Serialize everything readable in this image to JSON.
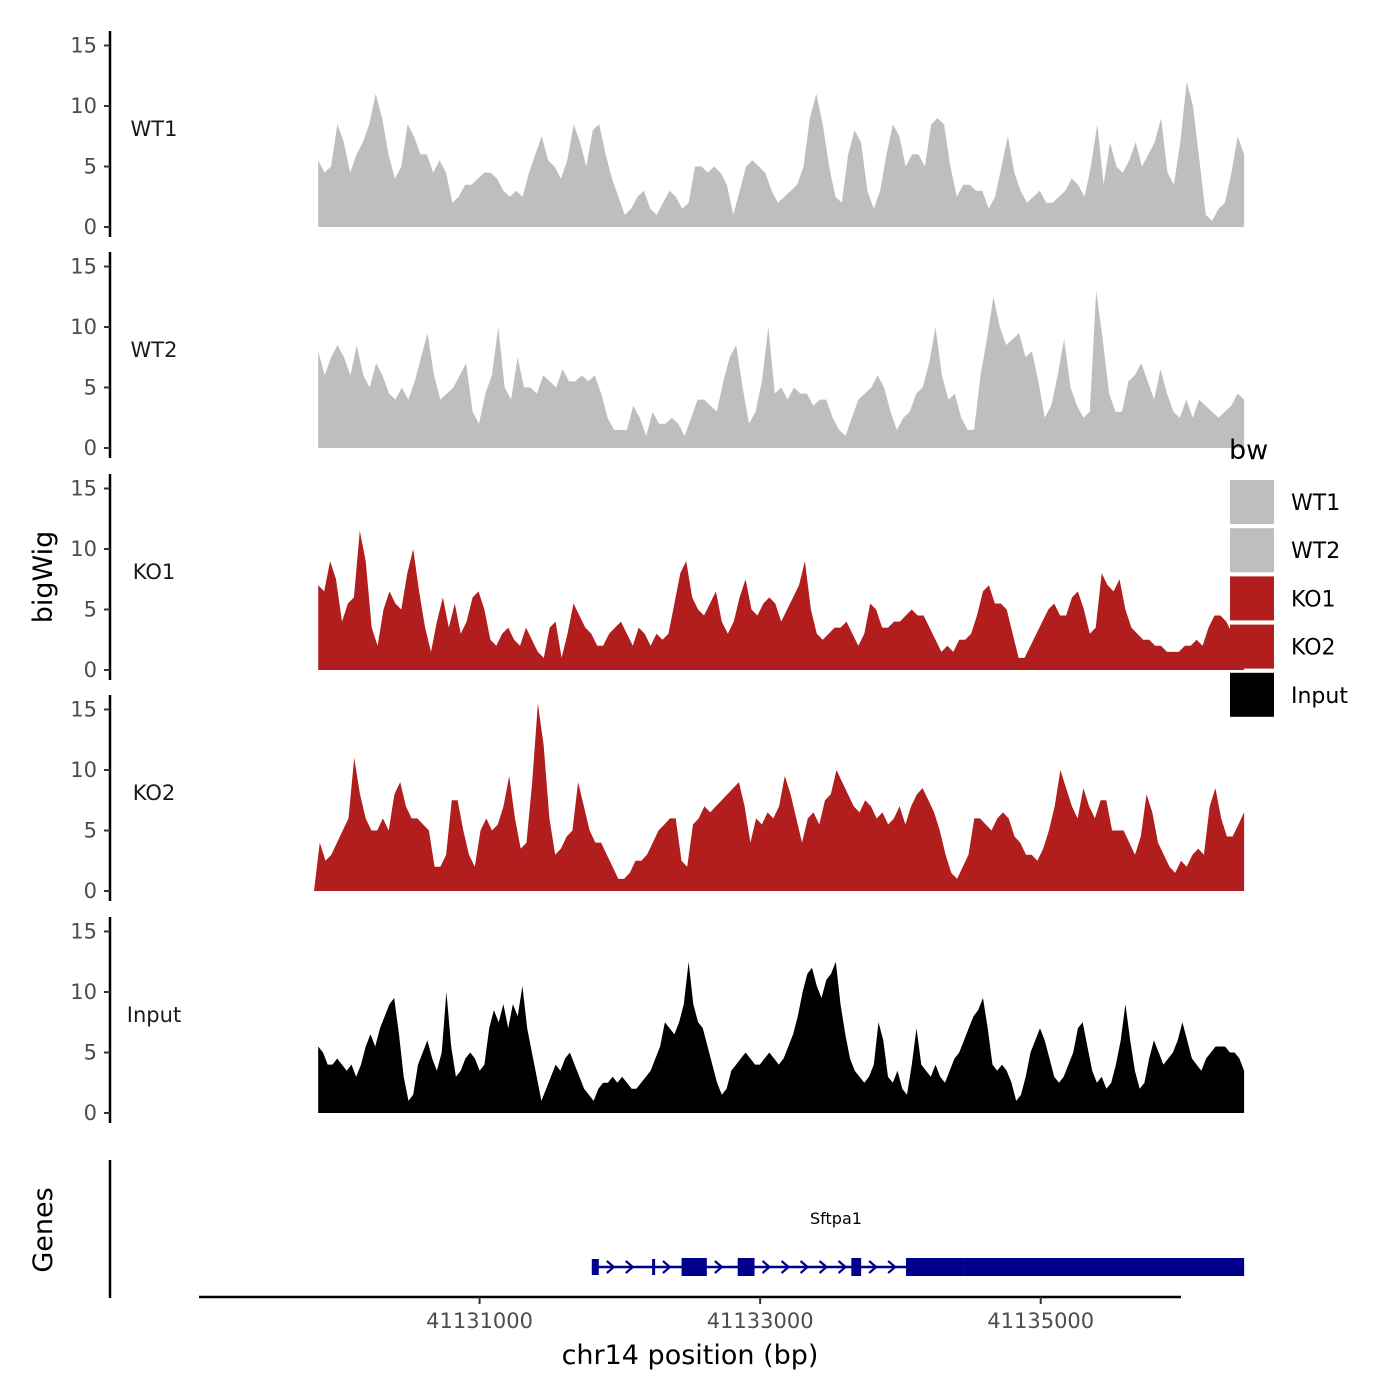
{
  "chart_data": {
    "type": "area",
    "ylabel": "bigWig",
    "xlabel": "chr14 position (bp)",
    "genes_label": "Genes",
    "ylim": [
      0,
      15
    ],
    "yticks": [
      "0",
      "5",
      "10",
      "15"
    ],
    "xlim": [
      41129000,
      41136000
    ],
    "xticks": [
      {
        "value": 41131000,
        "label": "41131000"
      },
      {
        "value": 41133000,
        "label": "41133000"
      },
      {
        "value": 41135000,
        "label": "41135000"
      }
    ],
    "series": [
      {
        "name": "WT1",
        "color": "#bebebe",
        "x_start": 41129850,
        "x_end": 41136450,
        "values": [
          5.5,
          4.5,
          5,
          8.5,
          7,
          4.5,
          6,
          7,
          8.5,
          11,
          9,
          6,
          4,
          5,
          8.5,
          7.5,
          6,
          6,
          4.5,
          5.5,
          4.5,
          2,
          2.5,
          3.5,
          3.5,
          4,
          4.5,
          4.5,
          4,
          3,
          2.5,
          3,
          2.5,
          4.5,
          6,
          7.5,
          5.5,
          5,
          4,
          5.5,
          8.5,
          7,
          5,
          8,
          8.5,
          6,
          4,
          2.5,
          1,
          1.5,
          2.5,
          3,
          1.5,
          1,
          2,
          3,
          2.5,
          1.5,
          2,
          5,
          5,
          4.5,
          5,
          4.5,
          3.5,
          1,
          3,
          5,
          5.5,
          5,
          4.5,
          3,
          2,
          2.5,
          3,
          3.5,
          5,
          9,
          11,
          8.5,
          5,
          2.5,
          2,
          6,
          8,
          7,
          3,
          1.5,
          3,
          6,
          8.5,
          7.5,
          5,
          6,
          6,
          5,
          8.5,
          9,
          8.5,
          5,
          2.5,
          3.5,
          3.5,
          3,
          3,
          1.5,
          2.5,
          5,
          7.5,
          4.5,
          3,
          2,
          2.5,
          3,
          2,
          2,
          2.5,
          3,
          4,
          3.5,
          2.5,
          5,
          8.5,
          3.5,
          7,
          5,
          4.5,
          5.5,
          7,
          5,
          6,
          7,
          9,
          4.5,
          3.5,
          7,
          12,
          10,
          5.5,
          1,
          0.5,
          1.5,
          2,
          4.5,
          7.5,
          6
        ]
      },
      {
        "name": "WT2",
        "color": "#bebebe",
        "x_start": 41129850,
        "x_end": 41136450,
        "values": [
          8,
          6,
          7.5,
          8.5,
          7.5,
          6,
          8.5,
          6,
          5,
          7,
          6,
          4.5,
          4,
          5,
          4,
          5.5,
          7.5,
          9.5,
          6,
          4,
          4.5,
          5,
          6,
          7,
          3,
          2,
          4.5,
          6,
          10,
          5,
          4,
          7.5,
          5,
          5,
          4.5,
          6,
          5.5,
          5,
          6.5,
          5.5,
          5.5,
          6,
          5.5,
          6,
          4.5,
          2.5,
          1.5,
          1.5,
          1.5,
          3.5,
          2.5,
          1,
          3,
          2,
          2,
          2.5,
          2,
          1,
          2.5,
          4,
          4,
          3.5,
          3,
          5.5,
          7.5,
          8.5,
          5,
          2,
          3,
          5.5,
          10,
          4.5,
          5,
          4,
          5,
          4.5,
          4.5,
          3.5,
          4,
          4,
          2.5,
          1.5,
          1,
          2.5,
          4,
          4.5,
          5,
          6,
          5,
          3,
          1.5,
          2.5,
          3,
          4.5,
          5,
          7,
          10,
          6,
          4,
          4.5,
          2.5,
          1.5,
          1.5,
          6,
          9,
          12.5,
          10,
          8.5,
          9,
          9.5,
          7.5,
          8,
          5.5,
          2.5,
          3.5,
          6,
          9,
          5,
          3.5,
          2.5,
          3,
          13,
          9,
          4.5,
          3,
          3,
          5.5,
          6,
          7,
          5.5,
          4,
          6.5,
          4.5,
          3,
          2.5,
          4,
          2.5,
          4,
          3.5,
          3,
          2.5,
          3,
          3.5,
          4.5,
          4
        ]
      },
      {
        "name": "KO1",
        "color": "#b21e1e",
        "x_start": 41129850,
        "x_end": 41136450,
        "values": [
          7,
          6.5,
          9,
          7.5,
          4,
          5.5,
          6,
          11.5,
          9,
          3.5,
          2,
          5,
          6.5,
          5.5,
          5,
          8,
          10,
          6.5,
          3.5,
          1.5,
          4,
          6,
          3.5,
          5.5,
          3,
          4,
          6,
          6.5,
          5,
          2.5,
          2,
          3,
          3.5,
          2.5,
          2,
          3.5,
          2.5,
          1.5,
          1,
          3.5,
          4,
          1,
          3,
          5.5,
          4.5,
          3.5,
          3,
          2,
          2,
          3,
          3.5,
          4,
          3,
          2,
          3.5,
          3,
          2,
          3,
          2.5,
          3,
          5.5,
          8,
          9,
          6,
          5,
          4.5,
          5.5,
          6.5,
          4,
          3,
          4,
          6,
          7.5,
          5,
          4.5,
          5.5,
          6,
          5.5,
          4,
          5,
          6,
          7,
          9,
          5,
          3,
          2.5,
          3,
          3.5,
          3.5,
          4,
          3,
          2,
          3,
          5.5,
          5,
          3.5,
          3.5,
          4,
          4,
          4.5,
          5,
          4.5,
          4.5,
          3.5,
          2.5,
          1.5,
          2,
          1.5,
          2.5,
          2.5,
          3,
          4.5,
          6.5,
          7,
          5.5,
          5.5,
          5,
          3,
          1,
          1,
          2,
          3,
          4,
          5,
          5.5,
          4.5,
          4.5,
          6,
          6.5,
          5,
          3,
          3.5,
          8,
          7,
          6.5,
          7.5,
          5,
          3.5,
          3,
          2.5,
          2.5,
          2,
          2,
          1.5,
          1.5,
          1.5,
          2,
          2,
          2.5,
          2,
          3.5,
          4.5,
          4.5,
          4,
          3,
          2.5,
          3
        ]
      },
      {
        "name": "KO2",
        "color": "#b21e1e",
        "x_start": 41129820,
        "x_end": 41136450,
        "values": [
          0,
          4,
          2.5,
          3,
          4,
          5,
          6,
          11,
          8,
          6,
          5,
          5,
          6,
          5,
          8,
          9,
          7,
          6,
          6,
          5.5,
          5,
          2,
          2,
          3,
          7.5,
          7.5,
          5,
          3,
          2,
          5,
          6,
          5,
          5.5,
          7,
          9.5,
          6,
          3.5,
          4,
          9,
          15.5,
          12,
          6,
          3,
          3.5,
          4.5,
          5,
          9,
          7,
          5,
          4,
          4,
          3,
          2,
          1,
          1,
          1.5,
          2.5,
          2.5,
          3,
          4,
          5,
          5.5,
          6,
          6,
          2.5,
          2,
          5.5,
          6,
          7,
          6.5,
          7,
          7.5,
          8,
          8.5,
          9,
          7,
          4,
          6,
          5.5,
          6.5,
          6,
          7,
          9.5,
          8,
          6,
          4,
          6,
          6.5,
          5.5,
          7.5,
          8,
          10,
          9,
          8,
          7,
          6.5,
          7.5,
          7,
          6,
          6.5,
          5.5,
          6,
          7,
          5.5,
          7,
          8,
          8.5,
          7.5,
          6.5,
          5,
          3,
          1.5,
          1,
          2,
          3,
          6,
          6,
          5.5,
          5,
          6,
          6.5,
          6,
          4.5,
          4,
          3,
          3,
          2.5,
          3.5,
          5,
          7,
          10,
          8.5,
          7,
          6,
          8.5,
          7,
          6,
          7.5,
          7.5,
          5,
          5,
          5,
          4,
          3,
          4.5,
          8,
          6.5,
          4,
          3,
          2,
          1.5,
          2.5,
          2,
          3,
          3.5,
          3,
          7,
          8.5,
          6,
          4.5,
          4.5,
          5.5,
          6.5
        ]
      },
      {
        "name": "Input",
        "color": "#000000",
        "x_start": 41129850,
        "x_end": 41136450,
        "values": [
          5.5,
          5,
          4,
          4,
          4.5,
          4,
          3.5,
          4,
          3,
          4,
          5.5,
          6.5,
          5.5,
          7,
          8,
          9,
          9.5,
          6.5,
          3,
          1,
          1.5,
          4,
          5,
          6,
          4.5,
          3.5,
          5,
          10,
          5.5,
          3,
          3.5,
          4.5,
          5,
          4.5,
          3.5,
          4,
          7,
          8.5,
          7.5,
          9,
          7,
          9,
          8,
          10.5,
          7,
          5,
          3,
          1,
          2,
          3,
          4,
          3.5,
          4.5,
          5,
          4,
          3,
          2,
          1.5,
          1,
          2,
          2.5,
          2.5,
          3,
          2.5,
          3,
          2.5,
          2,
          2,
          2.5,
          3,
          3.5,
          4.5,
          5.5,
          7.5,
          7,
          6.5,
          7.5,
          9,
          12.5,
          9,
          7.5,
          7,
          5.5,
          4,
          2.5,
          1.5,
          2,
          3.5,
          4,
          4.5,
          5,
          4.5,
          4,
          4,
          4.5,
          5,
          4.5,
          4,
          4.5,
          5.5,
          6.5,
          8,
          10,
          11.5,
          12,
          10.5,
          9.5,
          11,
          11.5,
          12.5,
          9,
          6.5,
          4.5,
          3.5,
          3,
          2.5,
          3,
          4,
          7.5,
          6,
          3,
          2.5,
          3.5,
          2,
          1.5,
          4,
          7,
          4,
          3.5,
          3,
          4,
          3,
          2.5,
          3.5,
          4.5,
          5,
          6,
          7,
          8,
          8.5,
          9.5,
          7,
          4,
          3.5,
          4,
          3.5,
          2.5,
          1,
          1.5,
          3,
          5,
          6,
          7,
          6,
          4.5,
          3,
          2.5,
          3,
          4,
          5,
          7,
          7.5,
          5.5,
          3.5,
          2.5,
          3,
          2,
          2.5,
          4,
          6,
          9,
          6,
          3.5,
          2,
          2.5,
          4.5,
          6,
          5,
          4,
          4.5,
          5,
          6,
          7.5,
          6,
          4.5,
          4,
          3.5,
          4.5,
          5,
          5.5,
          5.5,
          5.5,
          5,
          5,
          4.5,
          3.5
        ]
      }
    ],
    "legend": {
      "title": "bw",
      "placement": "right",
      "entries": [
        {
          "label": "WT1",
          "color": "#bebebe"
        },
        {
          "label": "WT2",
          "color": "#bebebe"
        },
        {
          "label": "KO1",
          "color": "#b21e1e"
        },
        {
          "label": "KO2",
          "color": "#b21e1e"
        },
        {
          "label": "Input",
          "color": "#000000"
        }
      ]
    },
    "gene_track": {
      "name": "Sftpa1",
      "color": "#00008b",
      "strand": "+",
      "start": 41131800,
      "end": 41136450,
      "exons": [
        {
          "start": 41131800,
          "end": 41131850,
          "thick": false
        },
        {
          "start": 41132230,
          "end": 41132250,
          "thick": false
        },
        {
          "start": 41132440,
          "end": 41132620,
          "thick": true
        },
        {
          "start": 41132840,
          "end": 41132960,
          "thick": true
        },
        {
          "start": 41133650,
          "end": 41133720,
          "thick": true
        },
        {
          "start": 41134040,
          "end": 41134450,
          "thick": true
        },
        {
          "start": 41134450,
          "end": 41136450,
          "thick": true
        }
      ]
    }
  }
}
